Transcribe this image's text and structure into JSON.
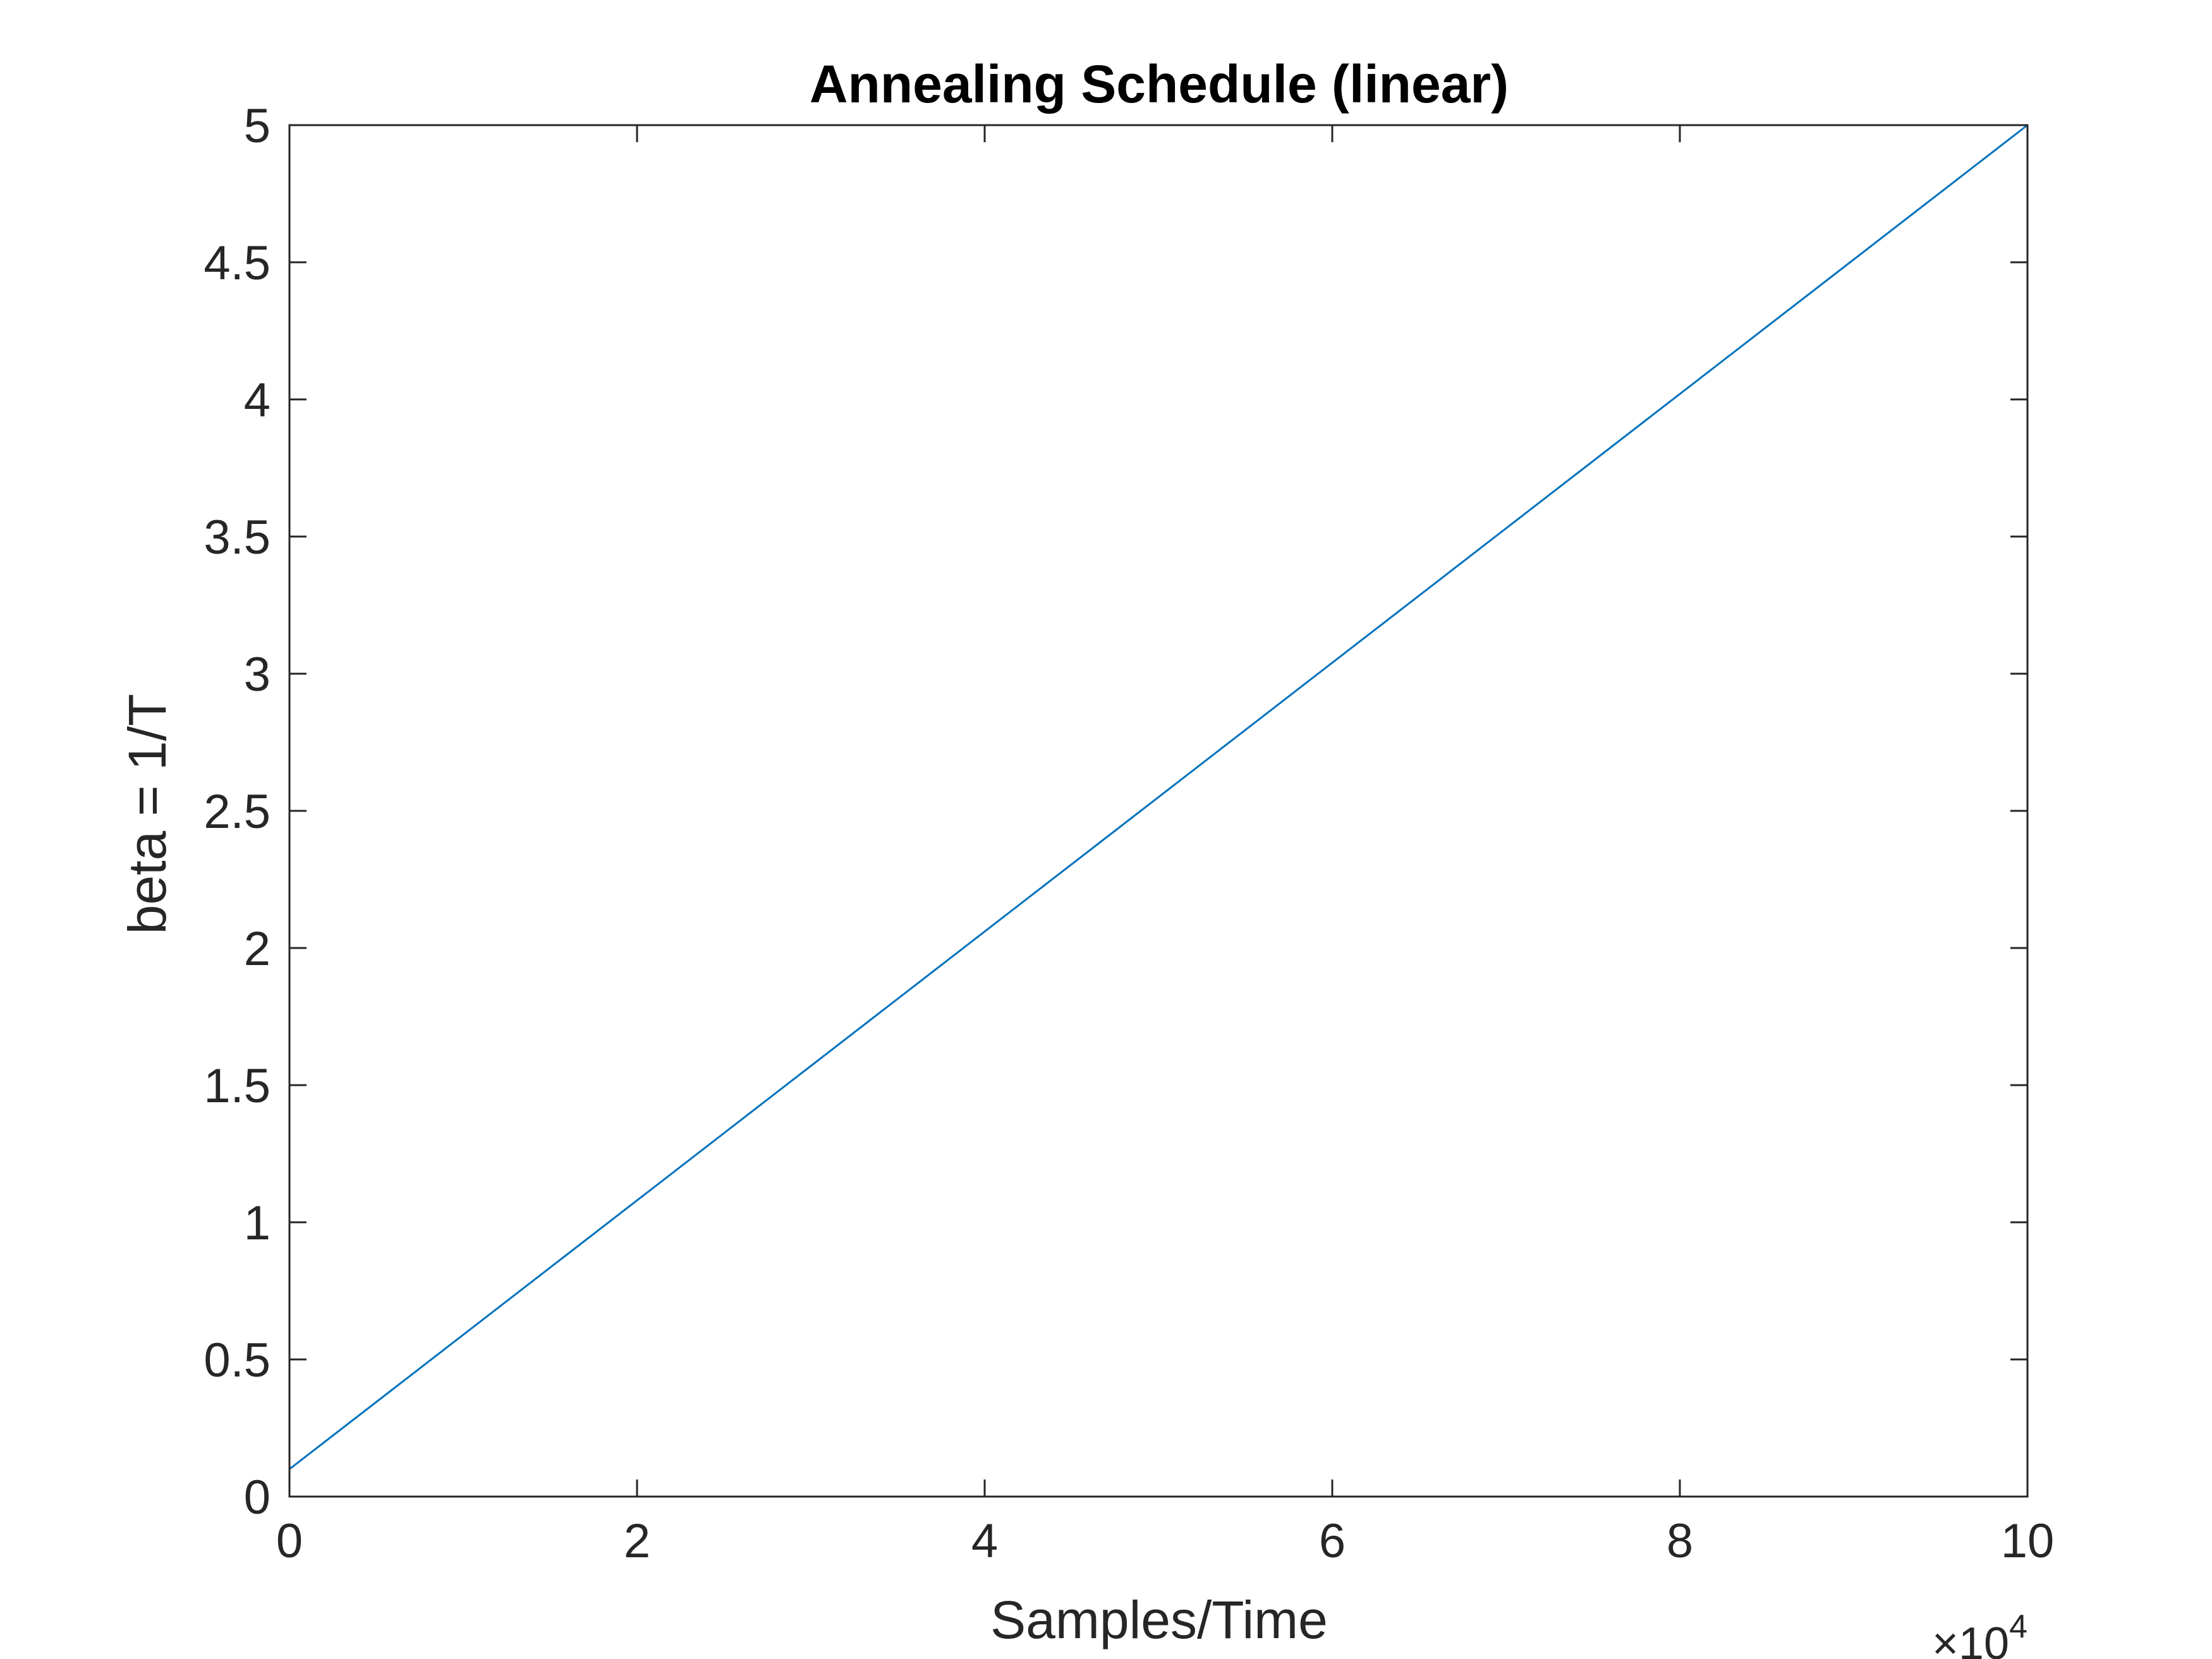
{
  "chart_data": {
    "type": "line",
    "title": "Annealing Schedule (linear)",
    "xlabel": "Samples/Time",
    "ylabel": "beta = 1/T",
    "x_exponent_label": "×10",
    "x_exponent_power": "4",
    "xlim": [
      0,
      100000
    ],
    "ylim": [
      0,
      5
    ],
    "x_ticks": [
      0,
      20000,
      40000,
      60000,
      80000,
      100000
    ],
    "x_tick_labels": [
      "0",
      "2",
      "4",
      "6",
      "8",
      "10"
    ],
    "y_ticks": [
      0,
      0.5,
      1,
      1.5,
      2,
      2.5,
      3,
      3.5,
      4,
      4.5,
      5
    ],
    "y_tick_labels": [
      "0",
      "0.5",
      "1",
      "1.5",
      "2",
      "2.5",
      "3",
      "3.5",
      "4",
      "4.5",
      "5"
    ],
    "grid": false,
    "series": [
      {
        "color": "#0072BD",
        "x": [
          0,
          100000
        ],
        "y": [
          0.1,
          5
        ]
      }
    ]
  }
}
